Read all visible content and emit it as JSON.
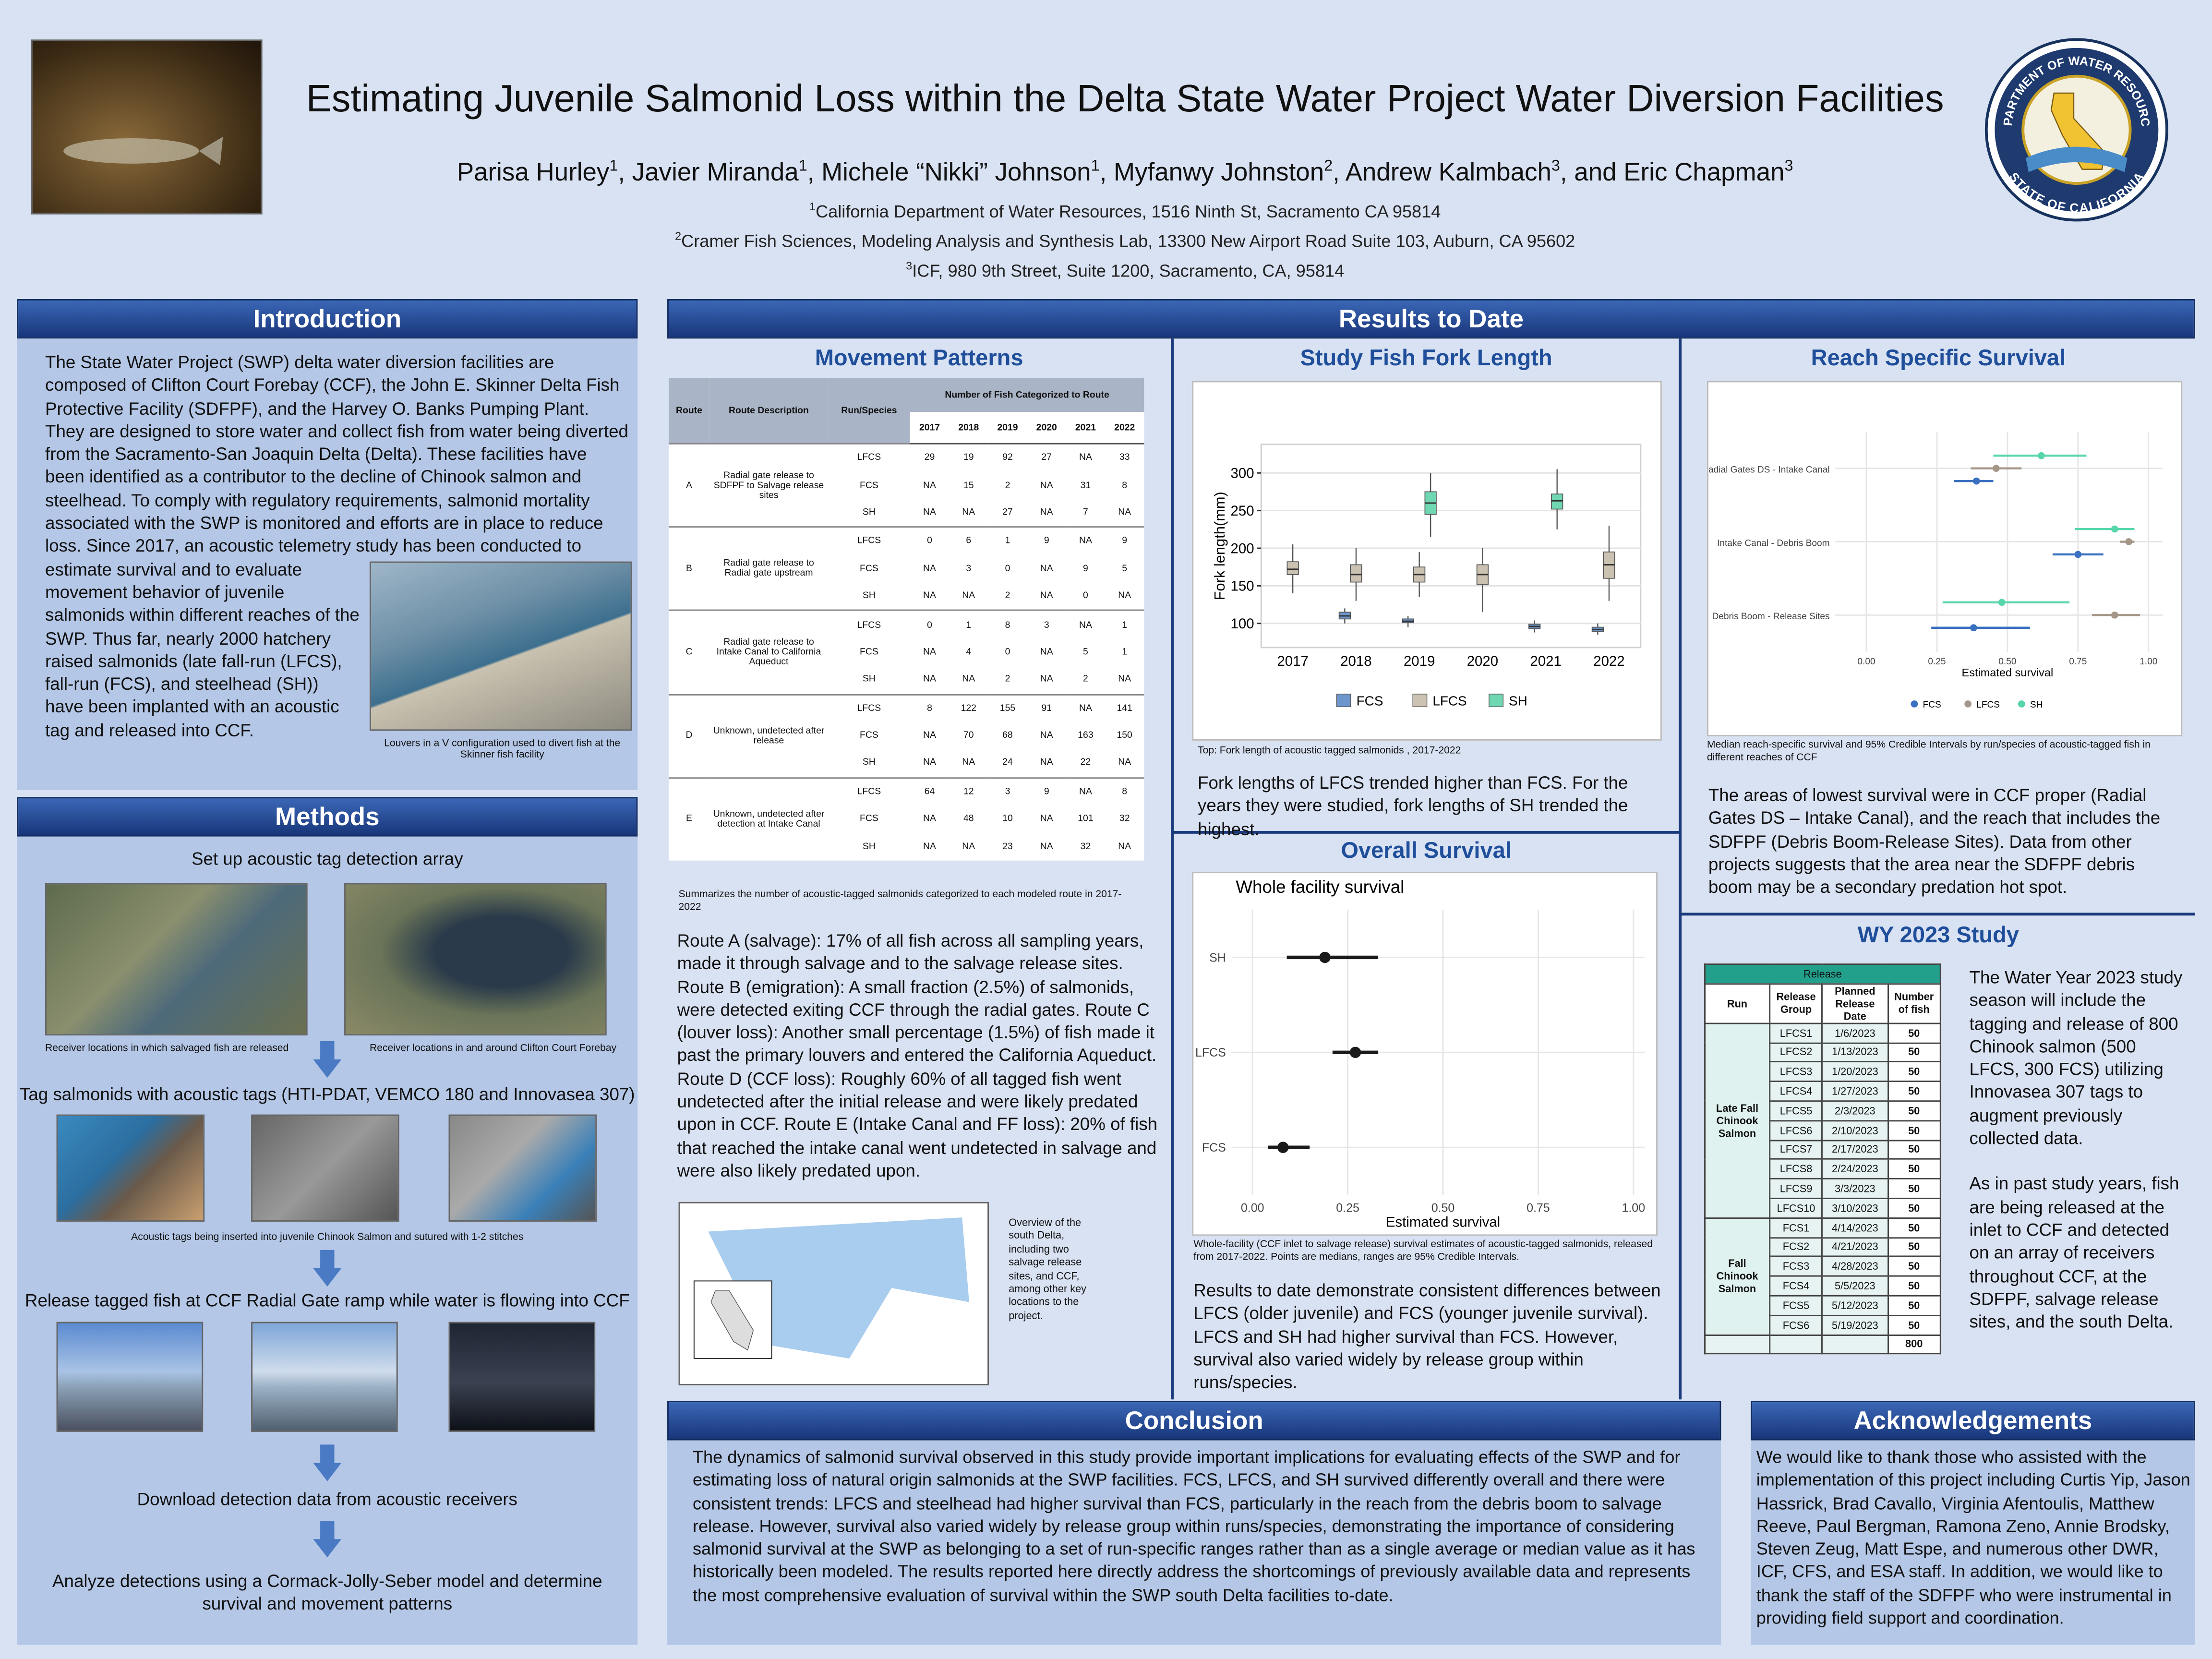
{
  "header": {
    "title": "Estimating Juvenile Salmonid Loss within the Delta State Water Project Water Diversion Facilities",
    "authors": [
      {
        "name": "Parisa Hurley",
        "affiliation": 1
      },
      {
        "name": ", Javier Miranda",
        "affiliation": 1
      },
      {
        "name": ", Michele “Nikki” Johnson",
        "affiliation": 1
      },
      {
        "name": ", Myfanwy Johnston",
        "affiliation": 2
      },
      {
        "name": ", Andrew Kalmbach",
        "affiliation": 3
      },
      {
        "name": ", and Eric Chapman",
        "affiliation": 3
      }
    ],
    "affiliations": [
      {
        "number": 1,
        "text": "California Department of Water Resources, 1516 Ninth St, Sacramento CA 95814"
      },
      {
        "number": 2,
        "text": "Cramer Fish Sciences, Modeling Analysis and Synthesis Lab, 13300 New Airport Road Suite 103, Auburn, CA 95602"
      },
      {
        "number": 3,
        "text": "ICF, 980 9th Street, Suite 1200, Sacramento, CA, 95814"
      }
    ],
    "logo": {
      "top_text": "DEPARTMENT OF WATER RESOURCES",
      "bottom_text": "STATE OF CALIFORNIA"
    }
  },
  "introduction": {
    "heading": "Introduction",
    "text_part1": "The State Water Project (SWP) delta water diversion facilities are composed of Clifton Court Forebay (CCF), the John E. Skinner Delta Fish Protective Facility (SDFPF), and the Harvey O. Banks Pumping Plant. They are designed to store water and collect fish from water being diverted from the Sacramento-San Joaquin Delta (Delta). These facilities have been identified as a contributor to the decline of Chinook salmon and steelhead. To comply with regulatory requirements, salmonid mortality associated with the SWP is monitored and efforts are in place to reduce loss. Since 2017, an acoustic telemetry study has been conducted to estimate survival",
    "text_part2": "and to evaluate movement behavior of juvenile salmonids within different reaches of the SWP. Thus far, nearly 2000 hatchery raised salmonids (late fall-run (LFCS), fall-run (FCS), and steelhead (SH)) have been implanted with an acoustic tag and released into CCF.",
    "figure_caption": "Louvers in a V configuration used to divert fish at the Skinner fish facility"
  },
  "methods": {
    "heading": "Methods",
    "steps": [
      "Set up acoustic tag detection array",
      "Tag salmonids with acoustic tags (HTI-PDAT, VEMCO 180 and Innovasea 307)",
      "Release tagged fish at CCF Radial Gate ramp while water is flowing into CCF",
      "Download detection data from acoustic receivers",
      "Analyze detections using a Cormack-Jolly-Seber model and determine survival and movement patterns"
    ],
    "captions": [
      "Receiver locations in which salvaged fish are released",
      "Receiver locations in and around Clifton Court Forebay",
      "Acoustic tags being inserted into juvenile Chinook Salmon and sutured with 1-2 stitches"
    ]
  },
  "results": {
    "heading": "Results to Date",
    "movement": {
      "title": "Movement Patterns",
      "table": {
        "columns": [
          "Route",
          "Route Description",
          "Run/Species",
          "Number of Fish Categorized to Route"
        ],
        "years": [
          "2017",
          "2018",
          "2019",
          "2020",
          "2021",
          "2022"
        ],
        "groups": [
          {
            "route": "A",
            "description": "Radial gate release to SDFPF to Salvage release sites",
            "rows": [
              {
                "species": "LFCS",
                "counts": [
                  29,
                  19,
                  92,
                  27,
                  "NA",
                  33
                ]
              },
              {
                "species": "FCS",
                "counts": [
                  "NA",
                  15,
                  2,
                  "NA",
                  31,
                  8
                ]
              },
              {
                "species": "SH",
                "counts": [
                  "NA",
                  "NA",
                  27,
                  "NA",
                  7,
                  "NA"
                ]
              }
            ]
          },
          {
            "route": "B",
            "description": "Radial gate release to Radial gate upstream",
            "rows": [
              {
                "species": "LFCS",
                "counts": [
                  0,
                  6,
                  1,
                  9,
                  "NA",
                  9
                ]
              },
              {
                "species": "FCS",
                "counts": [
                  "NA",
                  3,
                  0,
                  "NA",
                  9,
                  5
                ]
              },
              {
                "species": "SH",
                "counts": [
                  "NA",
                  "NA",
                  2,
                  "NA",
                  0,
                  "NA"
                ]
              }
            ]
          },
          {
            "route": "C",
            "description": "Radial gate release to Intake Canal to California Aqueduct",
            "rows": [
              {
                "species": "LFCS",
                "counts": [
                  0,
                  1,
                  8,
                  3,
                  "NA",
                  1
                ]
              },
              {
                "species": "FCS",
                "counts": [
                  "NA",
                  4,
                  0,
                  "NA",
                  5,
                  1
                ]
              },
              {
                "species": "SH",
                "counts": [
                  "NA",
                  "NA",
                  2,
                  "NA",
                  2,
                  "NA"
                ]
              }
            ]
          },
          {
            "route": "D",
            "description": "Unknown, undetected after release",
            "rows": [
              {
                "species": "LFCS",
                "counts": [
                  8,
                  122,
                  155,
                  91,
                  "NA",
                  141
                ]
              },
              {
                "species": "FCS",
                "counts": [
                  "NA",
                  70,
                  68,
                  "NA",
                  163,
                  150
                ]
              },
              {
                "species": "SH",
                "counts": [
                  "NA",
                  "NA",
                  24,
                  "NA",
                  22,
                  "NA"
                ]
              }
            ]
          },
          {
            "route": "E",
            "description": "Unknown, undetected after detection at Intake Canal",
            "rows": [
              {
                "species": "LFCS",
                "counts": [
                  64,
                  12,
                  3,
                  9,
                  "NA",
                  8
                ]
              },
              {
                "species": "FCS",
                "counts": [
                  "NA",
                  48,
                  10,
                  "NA",
                  101,
                  32
                ]
              },
              {
                "species": "SH",
                "counts": [
                  "NA",
                  "NA",
                  23,
                  "NA",
                  32,
                  "NA"
                ]
              }
            ]
          }
        ]
      },
      "caption": "Summarizes the number of acoustic-tagged salmonids categorized to each modeled route in 2017-2022",
      "text": "Route A (salvage): 17% of all fish across all sampling years, made it through salvage and to the salvage release sites. Route B (emigration): A small fraction (2.5%) of salmonids, were detected exiting CCF through the radial gates. Route C (louver loss): Another small percentage (1.5%) of fish made it past the primary louvers and entered the California Aqueduct. Route D (CCF loss): Roughly 60% of all tagged fish went undetected after the initial release and were likely predated upon in CCF. Route E (Intake Canal and FF loss): 20% of fish that reached the intake canal went undetected in salvage and were also likely predated upon.",
      "map_caption": "Overview of the south Delta, including two salvage release sites, and CCF, among other key locations to the project."
    },
    "fork_length": {
      "title": "Study Fish Fork Length",
      "caption": "Top: Fork length of acoustic tagged salmonids , 2017-2022",
      "text": "Fork lengths of LFCS trended higher than FCS. For the years they were studied, fork lengths of SH trended the highest."
    },
    "overall": {
      "title": "Overall Survival",
      "caption": "Whole-facility (CCF inlet to salvage release) survival estimates of acoustic-tagged salmonids, released from 2017-2022. Points are medians, ranges are 95% Credible Intervals.",
      "text": "Results to date demonstrate consistent differences between LFCS (older juvenile) and FCS (younger juvenile survival). LFCS and SH had higher survival than FCS.  However, survival also varied widely by release group within runs/species."
    },
    "reach": {
      "title": "Reach Specific Survival",
      "caption": "Median reach-specific survival and 95% Credible Intervals by run/species of acoustic-tagged fish in different reaches of CCF",
      "text": "The areas of lowest survival were in CCF proper (Radial Gates DS – Intake Canal), and the reach that includes the SDFPF (Debris Boom-Release Sites).  Data from other projects suggests that the area near the SDFPF debris boom may be a secondary predation hot spot."
    },
    "wy2023": {
      "title": "WY 2023 Study",
      "table": {
        "group_header": "Release",
        "columns": [
          "Run",
          "Release Group",
          "Planned Release Date",
          "Number of fish"
        ],
        "groups": [
          {
            "run": "Late Fall Chinook Salmon",
            "rows": [
              [
                "LFCS1",
                "1/6/2023",
                50
              ],
              [
                "LFCS2",
                "1/13/2023",
                50
              ],
              [
                "LFCS3",
                "1/20/2023",
                50
              ],
              [
                "LFCS4",
                "1/27/2023",
                50
              ],
              [
                "LFCS5",
                "2/3/2023",
                50
              ],
              [
                "LFCS6",
                "2/10/2023",
                50
              ],
              [
                "LFCS7",
                "2/17/2023",
                50
              ],
              [
                "LFCS8",
                "2/24/2023",
                50
              ],
              [
                "LFCS9",
                "3/3/2023",
                50
              ],
              [
                "LFCS10",
                "3/10/2023",
                50
              ]
            ]
          },
          {
            "run": "Fall Chinook Salmon",
            "rows": [
              [
                "FCS1",
                "4/14/2023",
                50
              ],
              [
                "FCS2",
                "4/21/2023",
                50
              ],
              [
                "FCS3",
                "4/28/2023",
                50
              ],
              [
                "FCS4",
                "5/5/2023",
                50
              ],
              [
                "FCS5",
                "5/12/2023",
                50
              ],
              [
                "FCS6",
                "5/19/2023",
                50
              ]
            ]
          }
        ],
        "total": 800
      },
      "text1": "The Water Year 2023 study season will include the tagging and release of 800 Chinook salmon (500 LFCS, 300 FCS) utilizing Innovasea 307 tags to augment previously collected data.",
      "text2": "As in past study years, fish are being released at the inlet to CCF and detected on an array of receivers throughout CCF, at the SDFPF, salvage release sites, and the south Delta."
    }
  },
  "conclusion": {
    "heading": "Conclusion",
    "text": "The dynamics of salmonid survival observed in this study provide important implications for evaluating effects of the SWP and for estimating loss of natural origin salmonids at the SWP facilities. FCS, LFCS, and SH survived differently overall and there were consistent trends: LFCS and steelhead had higher survival than FCS, particularly in the reach from the debris boom to salvage release. However, survival also varied widely by release group within runs/species, demonstrating the importance of considering salmonid survival at the SWP as belonging to a set of run-specific ranges rather than as a single average or median value as it has historically been modeled.  The results reported here directly address the shortcomings of previously available data and represents the most comprehensive evaluation of survival within the SWP south Delta facilities to-date."
  },
  "acknowledgements": {
    "heading": "Acknowledgements",
    "text": "We would like to thank those who assisted with the implementation of this project including Curtis Yip, Jason Hassrick, Brad Cavallo, Virginia Afentoulis, Matthew Reeve, Paul Bergman, Ramona Zeno, Annie Brodsky, Steven Zeug, Matt Espe, and numerous other DWR, ICF, CFS, and ESA staff.  In addition, we would like to thank the staff of the SDFPF who were instrumental in providing field support and coordination."
  },
  "chart_data": [
    {
      "type": "box",
      "ylabel": "Fork length(mm)",
      "categories": [
        "2017",
        "2018",
        "2019",
        "2020",
        "2021",
        "2022"
      ],
      "ylim": [
        68,
        338
      ],
      "yticks": [
        100,
        150,
        200,
        250,
        300
      ],
      "grid": true,
      "legend": "bottom",
      "series": [
        {
          "name": "FCS",
          "color": "#6d97cc",
          "low": [
            null,
            100,
            95,
            null,
            88,
            85
          ],
          "q1": [
            null,
            106,
            101,
            null,
            93,
            89
          ],
          "median": [
            null,
            110,
            103,
            null,
            96,
            92
          ],
          "q3": [
            null,
            115,
            106,
            null,
            99,
            95
          ],
          "high": [
            null,
            120,
            110,
            null,
            104,
            100
          ]
        },
        {
          "name": "LFCS",
          "color": "#cbc2b2",
          "low": [
            140,
            130,
            135,
            115,
            null,
            130
          ],
          "q1": [
            165,
            155,
            155,
            152,
            null,
            160
          ],
          "median": [
            172,
            165,
            165,
            165,
            null,
            178
          ],
          "q3": [
            182,
            178,
            175,
            178,
            null,
            195
          ],
          "high": [
            205,
            200,
            195,
            200,
            null,
            230
          ]
        },
        {
          "name": "SH",
          "color": "#6fd8b2",
          "low": [
            null,
            null,
            215,
            null,
            225,
            null
          ],
          "q1": [
            null,
            null,
            245,
            null,
            252,
            null
          ],
          "median": [
            null,
            null,
            260,
            null,
            263,
            null
          ],
          "q3": [
            null,
            null,
            275,
            null,
            272,
            null
          ],
          "high": [
            null,
            null,
            300,
            null,
            305,
            null
          ]
        }
      ]
    },
    {
      "type": "dot_interval",
      "title": "Whole facility survival",
      "xlabel": "Estimated survival",
      "categories": [
        "SH",
        "LFCS",
        "FCS"
      ],
      "values": [
        0.19,
        0.27,
        0.08
      ],
      "lower": [
        0.09,
        0.21,
        0.04
      ],
      "upper": [
        0.33,
        0.33,
        0.15
      ],
      "color": "#1a1a1a",
      "xlim": [
        -0.055,
        1.03
      ],
      "xticks": [
        {
          "value": 0,
          "label": "0.00"
        },
        {
          "value": 0.25,
          "label": "0.25"
        },
        {
          "value": 0.5,
          "label": "0.50"
        },
        {
          "value": 0.75,
          "label": "0.75"
        },
        {
          "value": 1,
          "label": "1.00"
        }
      ],
      "grid": true
    },
    {
      "type": "dot_interval",
      "xlabel": "Estimated survival",
      "categories": [
        "Radial Gates DS - Intake Canal",
        "Intake Canal - Debris Boom",
        "Debris Boom - Release Sites"
      ],
      "series": [
        {
          "name": "FCS",
          "color": "#3a70c0",
          "values": [
            0.39,
            0.75,
            0.38
          ],
          "lower": [
            0.31,
            0.66,
            0.23
          ],
          "upper": [
            0.45,
            0.84,
            0.58
          ]
        },
        {
          "name": "LFCS",
          "color": "#a59787",
          "values": [
            0.46,
            0.93,
            0.88
          ],
          "lower": [
            0.37,
            0.9,
            0.8
          ],
          "upper": [
            0.55,
            0.95,
            0.97
          ]
        },
        {
          "name": "SH",
          "color": "#56d6a9",
          "values": [
            0.62,
            0.88,
            0.48
          ],
          "lower": [
            0.45,
            0.74,
            0.27
          ],
          "upper": [
            0.78,
            0.95,
            0.72
          ]
        }
      ],
      "xlim": [
        -0.11,
        1.05
      ],
      "xticks": [
        {
          "value": 0,
          "label": "0.00"
        },
        {
          "value": 0.25,
          "label": "0.25"
        },
        {
          "value": 0.5,
          "label": "0.50"
        },
        {
          "value": 0.75,
          "label": "0.75"
        },
        {
          "value": 1,
          "label": "1.00"
        }
      ],
      "grid": true,
      "legend": "bottom"
    }
  ]
}
